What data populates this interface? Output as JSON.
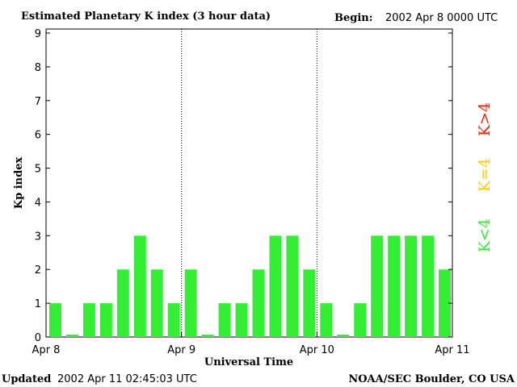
{
  "header": {
    "title": "Estimated Planetary K index (3 hour data)",
    "begin_label": "Begin:",
    "begin_value": "2002 Apr 8 0000 UTC"
  },
  "footer": {
    "updated_label": "Updated",
    "updated_value": "2002 Apr 11 02:45:03 UTC",
    "source": "NOAA/SEC Boulder, CO USA"
  },
  "legend": {
    "items": [
      {
        "label": "K<4",
        "color": "#33ee33"
      },
      {
        "label": "K=4",
        "color": "#ffcc00"
      },
      {
        "label": "K>4",
        "color": "#ff2200"
      }
    ]
  },
  "chart_data": {
    "type": "bar",
    "ylabel": "Kp index",
    "xlabel": "Universal Time",
    "ylim": [
      0,
      9
    ],
    "yticks": [
      0,
      1,
      2,
      3,
      4,
      5,
      6,
      7,
      8,
      9
    ],
    "day_labels": [
      "Apr 8",
      "Apr 9",
      "Apr 10",
      "Apr 11"
    ],
    "values": [
      1,
      0,
      1,
      1,
      2,
      3,
      2,
      1,
      2,
      0,
      1,
      1,
      2,
      3,
      3,
      2,
      1,
      0,
      1,
      3,
      3,
      3,
      3,
      2
    ],
    "bar_color": "#33ee33",
    "grid": false
  }
}
